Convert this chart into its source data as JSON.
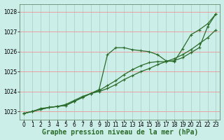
{
  "xlabel": "Graphe pression niveau de la mer (hPa)",
  "ylabel": "",
  "background_color": "#cceee8",
  "grid_color_h": "#e8a0a0",
  "grid_color_v": "#b0d8d0",
  "line_color": "#2a6b2a",
  "marker": "+",
  "xlim": [
    -0.5,
    23.5
  ],
  "ylim": [
    1022.6,
    1028.4
  ],
  "yticks": [
    1023,
    1024,
    1025,
    1026,
    1027,
    1028
  ],
  "xticks": [
    0,
    1,
    2,
    3,
    4,
    5,
    6,
    7,
    8,
    9,
    10,
    11,
    12,
    13,
    14,
    15,
    16,
    17,
    18,
    19,
    20,
    21,
    22,
    23
  ],
  "line1_x": [
    0,
    1,
    2,
    3,
    4,
    5,
    6,
    7,
    8,
    9,
    10,
    11,
    12,
    13,
    14,
    15,
    16,
    17,
    18,
    19,
    20,
    21,
    22,
    23
  ],
  "line1_y": [
    1022.9,
    1023.0,
    1023.15,
    1023.2,
    1023.25,
    1023.35,
    1023.55,
    1023.75,
    1023.9,
    1024.1,
    1025.85,
    1026.2,
    1026.2,
    1026.1,
    1026.05,
    1026.0,
    1025.85,
    1025.55,
    1025.5,
    1026.15,
    1026.85,
    1027.1,
    1027.4,
    1027.9
  ],
  "line2_x": [
    0,
    1,
    2,
    3,
    4,
    5,
    6,
    7,
    8,
    9,
    10,
    11,
    12,
    13,
    14,
    15,
    16,
    17,
    18,
    19,
    20,
    21,
    22,
    23
  ],
  "line2_y": [
    1022.9,
    1023.0,
    1023.1,
    1023.2,
    1023.25,
    1023.3,
    1023.5,
    1023.7,
    1023.9,
    1024.0,
    1024.15,
    1024.35,
    1024.6,
    1024.8,
    1025.0,
    1025.15,
    1025.35,
    1025.5,
    1025.65,
    1025.85,
    1026.1,
    1026.4,
    1026.7,
    1027.1
  ],
  "line3_x": [
    0,
    1,
    2,
    3,
    4,
    5,
    6,
    7,
    8,
    9,
    10,
    11,
    12,
    13,
    14,
    15,
    16,
    17,
    18,
    19,
    20,
    21,
    22,
    23
  ],
  "line3_y": [
    1022.9,
    1023.0,
    1023.1,
    1023.2,
    1023.25,
    1023.3,
    1023.5,
    1023.7,
    1023.9,
    1024.05,
    1024.3,
    1024.55,
    1024.85,
    1025.1,
    1025.3,
    1025.45,
    1025.5,
    1025.5,
    1025.55,
    1025.7,
    1025.95,
    1026.2,
    1027.25,
    1027.9
  ],
  "xlabel_fontsize": 7,
  "tick_fontsize": 5.5,
  "line_width": 0.9,
  "marker_size": 2.5,
  "marker_ew": 0.8
}
